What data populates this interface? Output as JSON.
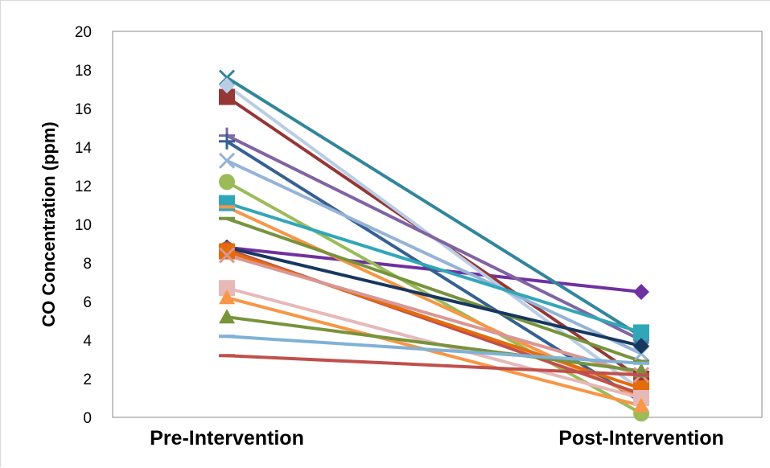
{
  "chart_data": {
    "type": "line",
    "title": "",
    "xlabel": "",
    "ylabel": "CO Concentration (ppm)",
    "categories": [
      "Pre-Intervention",
      "Post-Intervention"
    ],
    "ylim": [
      0,
      20
    ],
    "yticks": [
      0,
      2,
      4,
      6,
      8,
      10,
      12,
      14,
      16,
      18,
      20
    ],
    "grid": false,
    "legend": "none",
    "series": [
      {
        "values": [
          8.8,
          6.5
        ],
        "color": "#7030a0",
        "marker": "diamond"
      },
      {
        "values": [
          17.6,
          4.2
        ],
        "color": "#31859c",
        "marker": "x"
      },
      {
        "values": [
          16.6,
          2.0
        ],
        "color": "#953735",
        "marker": "square"
      },
      {
        "values": [
          17.2,
          1.4
        ],
        "color": "#b9cde5",
        "marker": "diamond"
      },
      {
        "values": [
          14.6,
          4.0
        ],
        "color": "#8064a2",
        "marker": "plus"
      },
      {
        "values": [
          14.3,
          0.8
        ],
        "color": "#376092",
        "marker": "plus"
      },
      {
        "values": [
          13.3,
          3.3
        ],
        "color": "#95b3d7",
        "marker": "x"
      },
      {
        "values": [
          12.2,
          0.2
        ],
        "color": "#9bbb59",
        "marker": "circle"
      },
      {
        "values": [
          11.1,
          4.4
        ],
        "color": "#31a6b8",
        "marker": "square"
      },
      {
        "values": [
          10.9,
          1.0
        ],
        "color": "#f79646",
        "marker": "dash"
      },
      {
        "values": [
          10.3,
          2.9
        ],
        "color": "#77933c",
        "marker": "dash"
      },
      {
        "values": [
          8.8,
          3.7
        ],
        "color": "#17375e",
        "marker": "diamond"
      },
      {
        "values": [
          8.7,
          1.2
        ],
        "color": "#c0504d",
        "marker": "circle"
      },
      {
        "values": [
          8.6,
          1.5
        ],
        "color": "#e46c0a",
        "marker": "square"
      },
      {
        "values": [
          8.4,
          2.2
        ],
        "color": "#d99694",
        "marker": "x"
      },
      {
        "values": [
          6.7,
          1.0
        ],
        "color": "#e6b9b8",
        "marker": "square"
      },
      {
        "values": [
          6.2,
          0.6
        ],
        "color": "#f79646",
        "marker": "triangle"
      },
      {
        "values": [
          5.2,
          2.4
        ],
        "color": "#77933c",
        "marker": "triangle"
      },
      {
        "values": [
          4.2,
          2.8
        ],
        "color": "#7fb1d5",
        "marker": "dash"
      },
      {
        "values": [
          3.2,
          2.2
        ],
        "color": "#c0504d",
        "marker": "dash"
      }
    ]
  }
}
